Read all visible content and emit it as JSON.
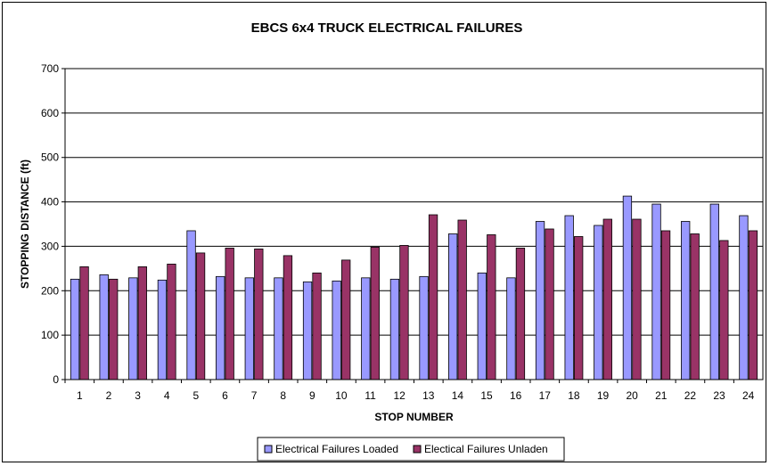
{
  "chart_data": {
    "type": "bar",
    "title": "EBCS 6x4 TRUCK ELECTRICAL FAILURES",
    "xlabel": "STOP NUMBER",
    "ylabel": "STOPPING DISTANCE (ft)",
    "ylim": [
      0,
      700
    ],
    "yticks": [
      0,
      100,
      200,
      300,
      400,
      500,
      600,
      700
    ],
    "grid": true,
    "legend_position": "bottom",
    "categories": [
      "1",
      "2",
      "3",
      "4",
      "5",
      "6",
      "7",
      "8",
      "9",
      "10",
      "11",
      "12",
      "13",
      "14",
      "15",
      "16",
      "17",
      "18",
      "19",
      "20",
      "21",
      "22",
      "23",
      "24"
    ],
    "series": [
      {
        "name": "Electrical Failures Loaded",
        "color": "#9999ff",
        "values": [
          226,
          236,
          229,
          224,
          335,
          232,
          229,
          229,
          220,
          222,
          229,
          226,
          232,
          328,
          240,
          229,
          356,
          369,
          347,
          413,
          395,
          356,
          395,
          369
        ]
      },
      {
        "name": "Electical Failures Unladen",
        "color": "#993366",
        "values": [
          254,
          226,
          254,
          260,
          285,
          296,
          294,
          279,
          240,
          269,
          298,
          302,
          371,
          359,
          326,
          296,
          339,
          322,
          361,
          361,
          335,
          328,
          313,
          335
        ]
      }
    ]
  }
}
